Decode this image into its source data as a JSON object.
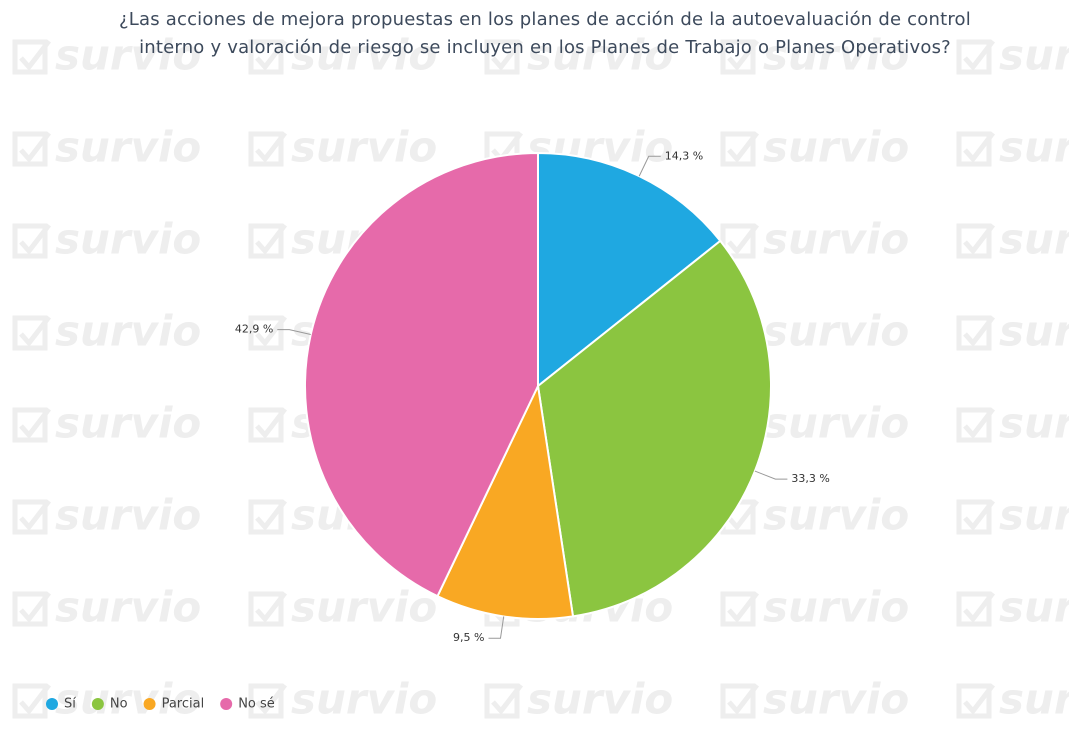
{
  "chart_data": {
    "type": "pie",
    "title": "¿Las acciones de mejora propuestas en los planes de acción de la autoevaluación de control interno y valoración de riesgo se incluyen en los Planes de Trabajo o Planes Operativos?",
    "categories": [
      "Sí",
      "No",
      "Parcial",
      "No sé"
    ],
    "values": [
      14.3,
      33.3,
      9.5,
      42.9
    ],
    "value_labels": [
      "14,3 %",
      "33,3 %",
      "9,5 %",
      "42,9 %"
    ],
    "colors": [
      "#1fa8e1",
      "#8bc540",
      "#f9a823",
      "#e66aaa"
    ],
    "legend": "bottom-left",
    "watermark": "survio"
  }
}
